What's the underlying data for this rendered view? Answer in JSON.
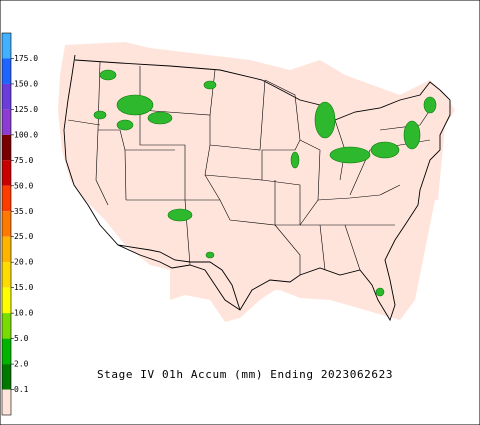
{
  "title": "Stage IV 01h Accum (mm) Ending 2023062623",
  "legend": {
    "labels": [
      "175.0",
      "150.0",
      "125.0",
      "100.0",
      "75.0",
      "50.0",
      "35.0",
      "25.0",
      "20.0",
      "15.0",
      "10.0",
      "5.0",
      "2.0",
      "0.1"
    ],
    "colors": [
      "#40b0ff",
      "#1e64ff",
      "#6a3cdc",
      "#8c3cd2",
      "#7a0000",
      "#c80000",
      "#ff3c00",
      "#ff7800",
      "#ffb400",
      "#ffdc00",
      "#ffff00",
      "#78dc00",
      "#00b400",
      "#007800",
      "#ffe4dc"
    ]
  }
}
